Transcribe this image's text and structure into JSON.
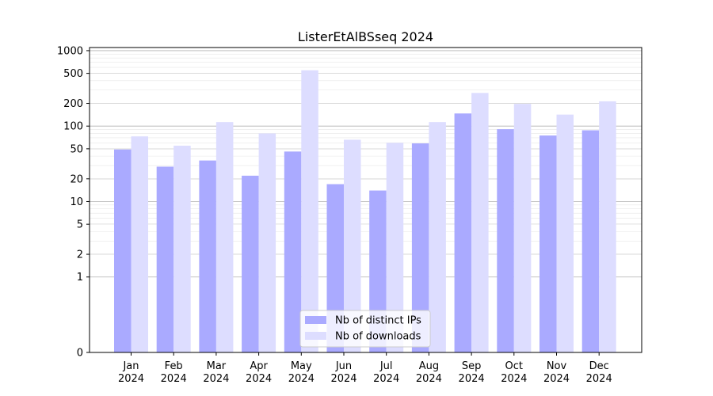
{
  "chart_data": {
    "type": "bar",
    "title": "ListerEtAlBSseq 2024",
    "xlabel": "",
    "ylabel": "",
    "categories": [
      "Jan\n2024",
      "Feb\n2024",
      "Mar\n2024",
      "Apr\n2024",
      "May\n2024",
      "Jun\n2024",
      "Jul\n2024",
      "Aug\n2024",
      "Sep\n2024",
      "Oct\n2024",
      "Nov\n2024",
      "Dec\n2024"
    ],
    "series": [
      {
        "name": "Nb of distinct IPs",
        "color": "#aaaaff",
        "values": [
          49,
          29,
          35,
          22,
          46,
          17,
          14,
          59,
          147,
          91,
          75,
          88
        ]
      },
      {
        "name": "Nb of downloads",
        "color": "#ddddff",
        "values": [
          73,
          55,
          113,
          80,
          549,
          66,
          60,
          113,
          275,
          197,
          142,
          213
        ]
      }
    ],
    "y_scale": "symlog",
    "ylim": [
      0,
      1100
    ],
    "yticks": [
      0,
      1,
      2,
      5,
      10,
      20,
      50,
      100,
      200,
      500,
      1000
    ],
    "grid": true,
    "legend_position": "bottom-center"
  }
}
